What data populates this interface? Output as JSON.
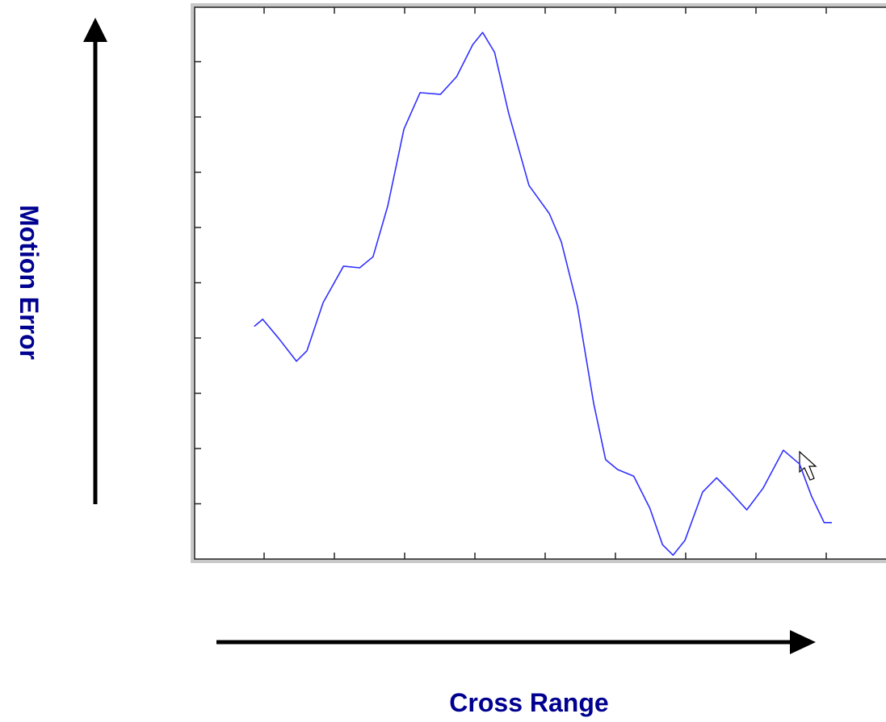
{
  "chart_data": {
    "type": "line",
    "xlabel": "Cross Range",
    "ylabel": "Motion Error",
    "x": [
      0.86,
      0.98,
      1.21,
      1.46,
      1.61,
      1.84,
      2.13,
      2.36,
      2.55,
      2.76,
      2.99,
      3.22,
      3.51,
      3.74,
      3.97,
      4.11,
      4.28,
      4.48,
      4.77,
      5.06,
      5.23,
      5.46,
      5.69,
      5.86,
      6.03,
      6.26,
      6.49,
      6.67,
      6.82,
      6.99,
      7.24,
      7.44,
      7.64,
      7.87,
      8.1,
      8.39,
      8.62,
      8.79,
      8.97,
      9.08
    ],
    "series": [
      {
        "color": "#3030ff",
        "values": [
          4.21,
          4.34,
          3.99,
          3.58,
          3.77,
          4.64,
          5.3,
          5.27,
          5.47,
          6.39,
          7.78,
          8.44,
          8.41,
          8.73,
          9.31,
          9.53,
          9.17,
          8.07,
          6.76,
          6.25,
          5.74,
          4.57,
          2.82,
          1.8,
          1.62,
          1.5,
          0.92,
          0.26,
          0.07,
          0.34,
          1.21,
          1.47,
          1.21,
          0.89,
          1.28,
          1.97,
          1.72,
          1.14,
          0.66,
          0.66
        ]
      }
    ],
    "xlim": [
      0,
      9.85
    ],
    "ylim": [
      0,
      10
    ],
    "xticks": [
      1,
      2,
      3,
      4,
      5,
      6,
      7,
      8,
      9
    ],
    "yticks": [
      1,
      2,
      3,
      4,
      5,
      6,
      7,
      8,
      9
    ]
  }
}
